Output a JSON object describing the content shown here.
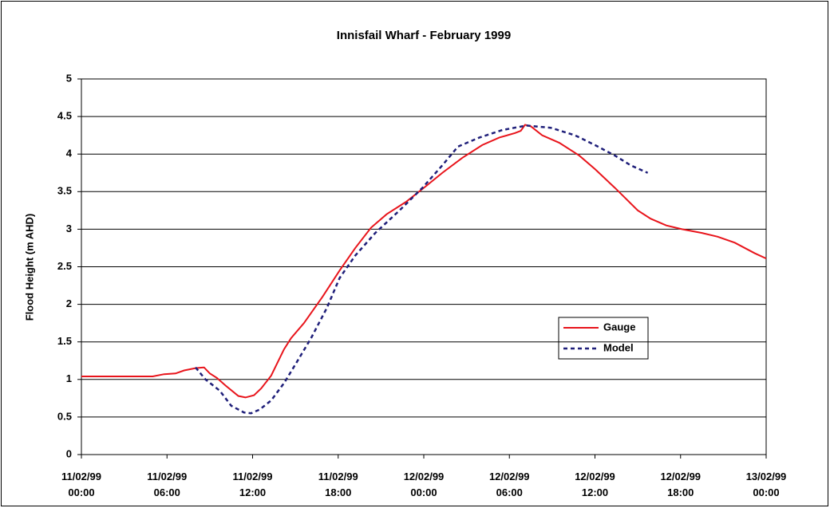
{
  "chart_data": {
    "type": "line",
    "title": "Innisfail Wharf - February 1999",
    "y_label": "Flood Height (m AHD)",
    "xlim": [
      0,
      48
    ],
    "xticks": [
      {
        "value": 0,
        "label": "11/02/99 00:00"
      },
      {
        "value": 6,
        "label": "11/02/99 06:00"
      },
      {
        "value": 12,
        "label": "11/02/99 12:00"
      },
      {
        "value": 18,
        "label": "11/02/99 18:00"
      },
      {
        "value": 24,
        "label": "12/02/99 00:00"
      },
      {
        "value": 30,
        "label": "12/02/99 06:00"
      },
      {
        "value": 36,
        "label": "12/02/99 12:00"
      },
      {
        "value": 42,
        "label": "12/02/99 18:00"
      },
      {
        "value": 48,
        "label": "13/02/99 00:00"
      }
    ],
    "ylim": [
      0,
      5
    ],
    "yticks": [
      0,
      0.5,
      1,
      1.5,
      2,
      2.5,
      3,
      3.5,
      4,
      4.5,
      5
    ],
    "grid": true,
    "series": [
      {
        "name": "Gauge",
        "color": "#e8141b",
        "dash": false,
        "x": [
          0,
          2,
          4,
          5,
          5.8,
          6.6,
          7.2,
          8,
          8.6,
          9,
          9.5,
          10.1,
          11,
          11.5,
          12.1,
          12.6,
          13.3,
          14.2,
          14.7,
          15.6,
          16.9,
          18.1,
          19.2,
          20.3,
          21.4,
          22.8,
          24.2,
          25.3,
          26.7,
          28.1,
          29.3,
          30.4,
          30.8,
          31.1,
          31.5,
          32.3,
          33.5,
          34.9,
          36,
          37.4,
          38.2,
          39,
          39.9,
          41,
          42.1,
          43.5,
          44.6,
          45.8,
          47.2,
          48
        ],
        "values": [
          1.04,
          1.04,
          1.04,
          1.04,
          1.07,
          1.08,
          1.12,
          1.15,
          1.16,
          1.08,
          1.02,
          0.92,
          0.78,
          0.76,
          0.79,
          0.88,
          1.05,
          1.4,
          1.55,
          1.75,
          2.1,
          2.45,
          2.75,
          3.02,
          3.2,
          3.37,
          3.58,
          3.75,
          3.95,
          4.12,
          4.22,
          4.28,
          4.31,
          4.39,
          4.37,
          4.25,
          4.15,
          3.98,
          3.8,
          3.55,
          3.4,
          3.25,
          3.14,
          3.05,
          3.0,
          2.95,
          2.9,
          2.82,
          2.68,
          2.61
        ]
      },
      {
        "name": "Model",
        "color": "#1f1f7a",
        "dash": true,
        "x": [
          8,
          8.7,
          9.7,
          10.5,
          11.4,
          11.9,
          12.5,
          13.3,
          14.2,
          15,
          16.1,
          17.2,
          18.1,
          19.2,
          20.6,
          22.3,
          23.9,
          25.3,
          26.4,
          27.9,
          29.5,
          31.2,
          32.9,
          34.6,
          36,
          37.4,
          38.5,
          39.7
        ],
        "values": [
          1.16,
          1.0,
          0.85,
          0.65,
          0.56,
          0.55,
          0.6,
          0.72,
          0.95,
          1.2,
          1.55,
          1.95,
          2.35,
          2.65,
          2.95,
          3.25,
          3.55,
          3.85,
          4.1,
          4.22,
          4.32,
          4.38,
          4.35,
          4.25,
          4.12,
          3.98,
          3.85,
          3.75
        ]
      }
    ]
  }
}
